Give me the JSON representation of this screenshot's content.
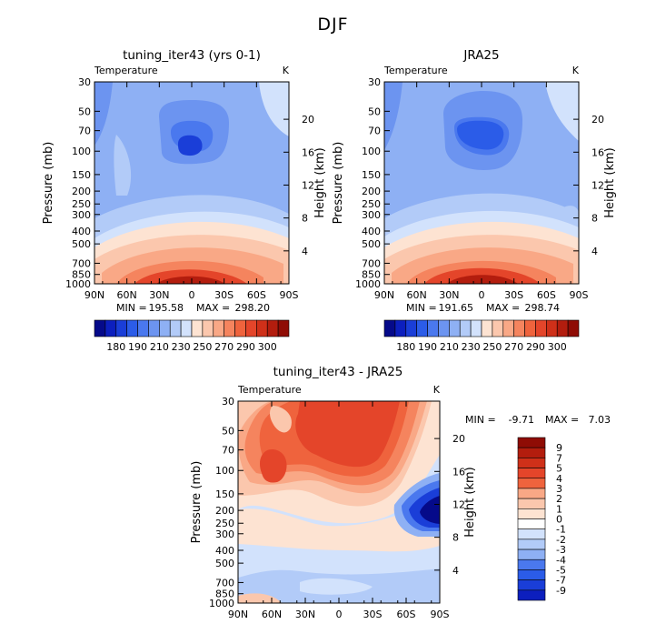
{
  "figure": {
    "title": "DJF",
    "colors": {
      "cool": [
        "#050a8a",
        "#0c1fbe",
        "#1a3ed8",
        "#2b5ce8",
        "#4a78ee",
        "#6c94f0",
        "#8eb0f4",
        "#b2cbf8",
        "#d2e2fc"
      ],
      "neutral": "#ffffff",
      "warm": [
        "#fde3d2",
        "#fbc7ad",
        "#f9a886",
        "#f5845e",
        "#ef633d",
        "#e4452a",
        "#cf3019",
        "#b31d0e",
        "#8f0c05"
      ]
    }
  },
  "chart_data": [
    {
      "type": "heatmap",
      "title": "tuning_iter43 (yrs 0-1)",
      "subtitle_left": "Temperature",
      "subtitle_right": "K",
      "xlabel": "",
      "ylabel": "Pressure (mb)",
      "y2label": "Height (km)",
      "x_ticks": [
        "90N",
        "60N",
        "30N",
        "0",
        "30S",
        "60S",
        "90S"
      ],
      "y_ticks": [
        "30",
        "50",
        "70",
        "100",
        "150",
        "200",
        "250",
        "300",
        "400",
        "500",
        "700",
        "850",
        "1000"
      ],
      "y2_ticks": [
        "20",
        "16",
        "12",
        "8",
        "4"
      ],
      "stats": {
        "min_label": "MIN =",
        "min": "195.58",
        "max_label": "MAX =",
        "max": "298.20"
      },
      "colorbar": {
        "orientation": "horizontal",
        "levels": [
          "180",
          "190",
          "210",
          "230",
          "250",
          "270",
          "290",
          "300"
        ]
      }
    },
    {
      "type": "heatmap",
      "title": "JRA25",
      "subtitle_left": "Temperature",
      "subtitle_right": "K",
      "xlabel": "",
      "ylabel": "Pressure (mb)",
      "y2label": "Height (km)",
      "x_ticks": [
        "90N",
        "60N",
        "30N",
        "0",
        "30S",
        "60S",
        "90S"
      ],
      "y_ticks": [
        "30",
        "50",
        "70",
        "100",
        "150",
        "200",
        "250",
        "300",
        "400",
        "500",
        "700",
        "850",
        "1000"
      ],
      "y2_ticks": [
        "20",
        "16",
        "12",
        "8",
        "4"
      ],
      "stats": {
        "min_label": "MIN =",
        "min": "191.65",
        "max_label": "MAX =",
        "max": "298.74"
      },
      "colorbar": {
        "orientation": "horizontal",
        "levels": [
          "180",
          "190",
          "210",
          "230",
          "250",
          "270",
          "290",
          "300"
        ]
      }
    },
    {
      "type": "heatmap",
      "title": "tuning_iter43 - JRA25",
      "subtitle_left": "Temperature",
      "subtitle_right": "K",
      "xlabel": "",
      "ylabel": "Pressure (mb)",
      "y2label": "Height (km)",
      "x_ticks": [
        "90N",
        "60N",
        "30N",
        "0",
        "30S",
        "60S",
        "90S"
      ],
      "y_ticks": [
        "30",
        "50",
        "70",
        "100",
        "150",
        "200",
        "250",
        "300",
        "400",
        "500",
        "700",
        "850",
        "1000"
      ],
      "y2_ticks": [
        "20",
        "16",
        "12",
        "8",
        "4"
      ],
      "stats": {
        "min_label": "MIN =",
        "min": "-9.71",
        "max_label": "MAX =",
        "max": "7.03"
      },
      "colorbar": {
        "orientation": "vertical",
        "levels": [
          "9",
          "7",
          "5",
          "4",
          "3",
          "2",
          "1",
          "0",
          "-1",
          "-2",
          "-3",
          "-4",
          "-5",
          "-7",
          "-9"
        ]
      }
    }
  ]
}
